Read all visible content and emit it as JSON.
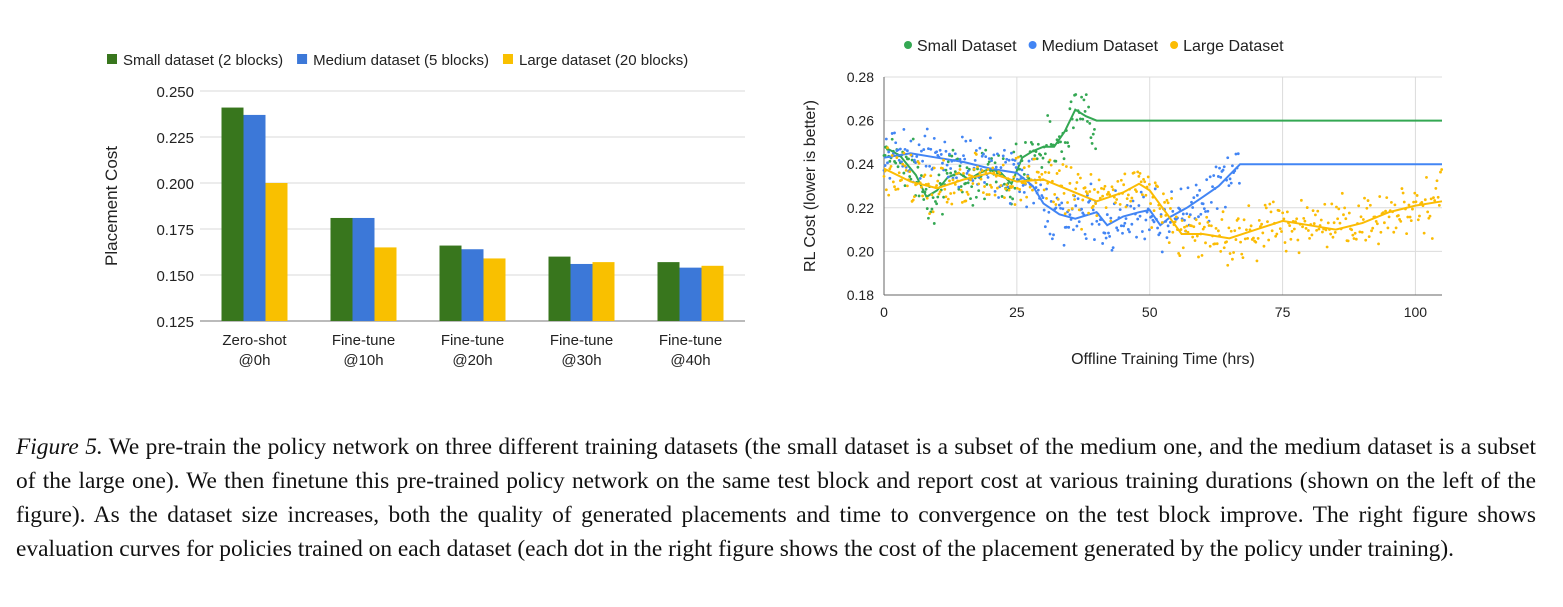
{
  "chart_data": [
    {
      "type": "bar",
      "title": "",
      "xlabel": "",
      "ylabel": "Placement Cost",
      "ylim": [
        0.125,
        0.25
      ],
      "yticks": [
        "0.125",
        "0.150",
        "0.175",
        "0.200",
        "0.225",
        "0.250"
      ],
      "grid": true,
      "legend_position": "top",
      "categories": [
        [
          "Zero-shot",
          "@0h"
        ],
        [
          "Fine-tune",
          "@10h"
        ],
        [
          "Fine-tune",
          "@20h"
        ],
        [
          "Fine-tune",
          "@30h"
        ],
        [
          "Fine-tune",
          "@40h"
        ]
      ],
      "series": [
        {
          "name": "Small dataset (2 blocks)",
          "color": "#38761d",
          "values": [
            0.241,
            0.181,
            0.166,
            0.16,
            0.157
          ]
        },
        {
          "name": "Medium dataset (5 blocks)",
          "color": "#3c78d8",
          "values": [
            0.237,
            0.181,
            0.164,
            0.156,
            0.154
          ]
        },
        {
          "name": "Large dataset (20 blocks)",
          "color": "#f9c000",
          "values": [
            0.2,
            0.165,
            0.159,
            0.157,
            0.155
          ]
        }
      ]
    },
    {
      "type": "scatter",
      "title": "",
      "xlabel": "Offline Training Time (hrs)",
      "ylabel": "RL Cost (lower is better)",
      "xlim": [
        0,
        105
      ],
      "ylim": [
        0.18,
        0.28
      ],
      "xticks": [
        "0",
        "25",
        "50",
        "75",
        "100"
      ],
      "yticks": [
        "0.18",
        "0.20",
        "0.22",
        "0.24",
        "0.26",
        "0.28"
      ],
      "grid": true,
      "legend_position": "top",
      "series": [
        {
          "name": "Small Dataset",
          "color": "#34a853",
          "trend": [
            [
              0,
              0.248
            ],
            [
              3,
              0.244
            ],
            [
              6,
              0.235
            ],
            [
              8,
              0.225
            ],
            [
              10,
              0.228
            ],
            [
              12,
              0.234
            ],
            [
              14,
              0.236
            ],
            [
              16,
              0.233
            ],
            [
              18,
              0.236
            ],
            [
              20,
              0.238
            ],
            [
              22,
              0.236
            ],
            [
              24,
              0.231
            ],
            [
              26,
              0.243
            ],
            [
              28,
              0.246
            ],
            [
              30,
              0.248
            ],
            [
              32,
              0.248
            ],
            [
              34,
              0.255
            ],
            [
              36,
              0.265
            ],
            [
              38,
              0.262
            ],
            [
              40,
              0.26
            ],
            [
              105,
              0.26
            ]
          ],
          "points_until": 40
        },
        {
          "name": "Medium Dataset",
          "color": "#4285f4",
          "trend": [
            [
              0,
              0.243
            ],
            [
              5,
              0.245
            ],
            [
              10,
              0.243
            ],
            [
              15,
              0.241
            ],
            [
              20,
              0.238
            ],
            [
              25,
              0.236
            ],
            [
              28,
              0.23
            ],
            [
              30,
              0.222
            ],
            [
              33,
              0.217
            ],
            [
              36,
              0.215
            ],
            [
              40,
              0.218
            ],
            [
              42,
              0.212
            ],
            [
              45,
              0.216
            ],
            [
              48,
              0.218
            ],
            [
              50,
              0.219
            ],
            [
              52,
              0.212
            ],
            [
              54,
              0.216
            ],
            [
              57,
              0.22
            ],
            [
              60,
              0.225
            ],
            [
              63,
              0.23
            ],
            [
              65,
              0.235
            ],
            [
              67,
              0.24
            ],
            [
              105,
              0.24
            ]
          ],
          "points_until": 67
        },
        {
          "name": "Large Dataset",
          "color": "#fbbc04",
          "trend": [
            [
              0,
              0.238
            ],
            [
              5,
              0.232
            ],
            [
              10,
              0.229
            ],
            [
              15,
              0.233
            ],
            [
              20,
              0.236
            ],
            [
              25,
              0.232
            ],
            [
              30,
              0.233
            ],
            [
              35,
              0.228
            ],
            [
              40,
              0.223
            ],
            [
              45,
              0.227
            ],
            [
              48,
              0.231
            ],
            [
              50,
              0.228
            ],
            [
              53,
              0.218
            ],
            [
              56,
              0.208
            ],
            [
              60,
              0.208
            ],
            [
              65,
              0.206
            ],
            [
              70,
              0.21
            ],
            [
              75,
              0.214
            ],
            [
              80,
              0.212
            ],
            [
              85,
              0.21
            ],
            [
              90,
              0.213
            ],
            [
              95,
              0.218
            ],
            [
              100,
              0.221
            ],
            [
              105,
              0.223
            ]
          ],
          "points_until": 105
        }
      ]
    }
  ],
  "caption": {
    "label": "Figure 5.",
    "text": " We pre-train the policy network on three different training datasets (the small dataset is a subset of the medium one, and the medium dataset is a subset of the large one). We then finetune this pre-trained policy network on the same test block and report cost at various training durations (shown on the left of the figure).  As the dataset size increases, both the quality of generated placements and time to convergence on the test block improve. The right figure shows evaluation curves for policies trained on each dataset (each dot in the right figure shows the cost of the placement generated by the policy under training)."
  }
}
